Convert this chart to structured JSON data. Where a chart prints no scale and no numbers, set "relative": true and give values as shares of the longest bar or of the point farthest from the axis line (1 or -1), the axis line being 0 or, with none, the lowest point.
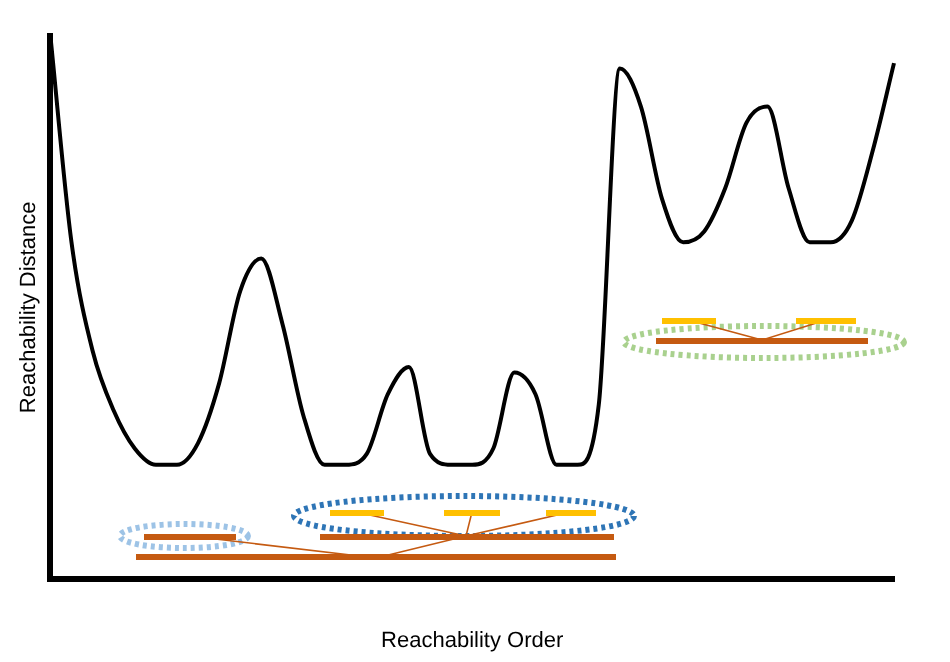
{
  "chart_data": {
    "type": "line",
    "xlabel": "Reachability Order",
    "ylabel": "Reachability Distance",
    "relative": true,
    "color": "#000000",
    "marker": "none",
    "grid": false,
    "legend": false,
    "categories": [
      null,
      null,
      null,
      null,
      null,
      null,
      null,
      null,
      null,
      null,
      null,
      null,
      null,
      null,
      null,
      null,
      null,
      null,
      null,
      null,
      null,
      null,
      null,
      null,
      null,
      null,
      null,
      null,
      null,
      null,
      null,
      null,
      null,
      null,
      null,
      null,
      null,
      null,
      null,
      null,
      null
    ],
    "values": [
      1.0,
      0.62,
      0.42,
      0.31,
      0.24,
      0.21,
      0.21,
      0.25,
      0.36,
      0.53,
      0.59,
      0.47,
      0.3,
      0.21,
      0.21,
      0.23,
      0.34,
      0.39,
      0.23,
      0.21,
      0.21,
      0.24,
      0.38,
      0.34,
      0.21,
      0.21,
      0.32,
      0.94,
      0.87,
      0.7,
      0.62,
      0.64,
      0.72,
      0.84,
      0.87,
      0.72,
      0.62,
      0.62,
      0.66,
      0.79,
      0.95
    ]
  }
}
